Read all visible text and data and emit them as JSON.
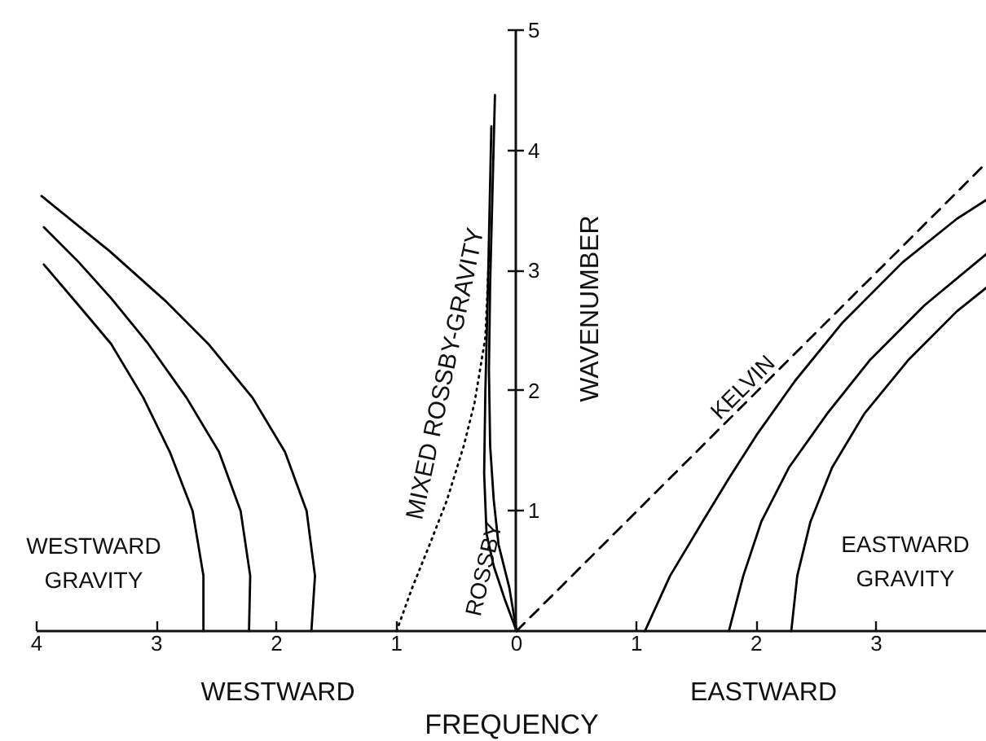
{
  "chart_data": {
    "type": "line",
    "xlabel": "FREQUENCY",
    "ylabel": "WAVENUMBER",
    "xlim": [
      -4,
      3.92
    ],
    "ylim": [
      0,
      5
    ],
    "xticks": [
      {
        "value": -4,
        "label": "4"
      },
      {
        "value": -3,
        "label": "3"
      },
      {
        "value": -2,
        "label": "2"
      },
      {
        "value": -1,
        "label": "1"
      },
      0,
      1,
      2,
      3
    ],
    "yticks": [
      1,
      2,
      3,
      4,
      5
    ],
    "series": [
      {
        "color": "#000000",
        "line_style": "solid",
        "x": [
          -1.71,
          -1.68,
          -1.75,
          -1.93,
          -2.2,
          -2.57,
          -2.93,
          -3.39,
          -3.96
        ],
        "values": [
          0,
          0.46,
          1.0,
          1.49,
          1.94,
          2.39,
          2.75,
          3.16,
          3.62
        ]
      },
      {
        "color": "#000000",
        "line_style": "solid",
        "x": [
          -2.23,
          -2.22,
          -2.3,
          -2.48,
          -2.75,
          -3.07,
          -3.38,
          -3.65,
          -3.94
        ],
        "values": [
          0,
          0.46,
          1.0,
          1.49,
          1.94,
          2.39,
          2.77,
          3.07,
          3.36
        ]
      },
      {
        "color": "#000000",
        "line_style": "solid",
        "x": [
          -2.61,
          -2.61,
          -2.7,
          -2.89,
          -3.11,
          -3.38,
          -3.65,
          -3.94
        ],
        "values": [
          0,
          0.46,
          1.0,
          1.49,
          1.94,
          2.39,
          2.71,
          3.05
        ]
      },
      {
        "color": "#000000",
        "line_style": "solid",
        "x": [
          0,
          -0.06,
          -0.15,
          -0.19,
          -0.22,
          -0.23,
          -0.22,
          -0.18
        ],
        "values": [
          0,
          0.36,
          0.72,
          1.09,
          1.54,
          2.17,
          2.89,
          4.46
        ]
      },
      {
        "color": "#000000",
        "line_style": "solid",
        "x": [
          0,
          -0.1,
          -0.19,
          -0.25,
          -0.27,
          -0.26,
          -0.24,
          -0.21
        ],
        "values": [
          0,
          0.27,
          0.54,
          0.81,
          1.31,
          1.99,
          2.8,
          4.2
        ]
      },
      {
        "color": "#000000",
        "line_style": "dotted",
        "x": [
          -1.0,
          -0.87,
          -0.72,
          -0.58,
          -0.44,
          -0.35,
          -0.26,
          -0.23
        ],
        "values": [
          0,
          0.36,
          0.73,
          1.09,
          1.54,
          1.9,
          2.44,
          3.1
        ]
      },
      {
        "color": "#000000",
        "line_style": "dashed",
        "x": [
          0,
          3.92
        ],
        "values": [
          0,
          3.9
        ]
      },
      {
        "color": "#000000",
        "line_style": "solid",
        "x": [
          1.07,
          1.28,
          1.55,
          1.77,
          2.0,
          2.32,
          2.72,
          3.22,
          3.67,
          3.92
        ],
        "values": [
          0,
          0.46,
          0.91,
          1.27,
          1.63,
          2.08,
          2.57,
          3.07,
          3.43,
          3.59
        ]
      },
      {
        "color": "#000000",
        "line_style": "solid",
        "x": [
          1.77,
          1.89,
          2.04,
          2.27,
          2.59,
          2.95,
          3.4,
          3.92
        ],
        "values": [
          0,
          0.46,
          0.91,
          1.36,
          1.81,
          2.26,
          2.71,
          3.14
        ]
      },
      {
        "color": "#000000",
        "line_style": "solid",
        "x": [
          2.29,
          2.34,
          2.45,
          2.63,
          2.9,
          3.27,
          3.67,
          3.92
        ],
        "values": [
          0,
          0.46,
          0.91,
          1.36,
          1.81,
          2.26,
          2.66,
          2.86
        ]
      }
    ],
    "annotations": [
      "WESTWARD",
      "EASTWARD",
      "WESTWARD\nGRAVITY",
      "EASTWARD\nGRAVITY",
      "KELVIN",
      "ROSSBY",
      "MIXED ROSSBY-GRAVITY"
    ]
  }
}
